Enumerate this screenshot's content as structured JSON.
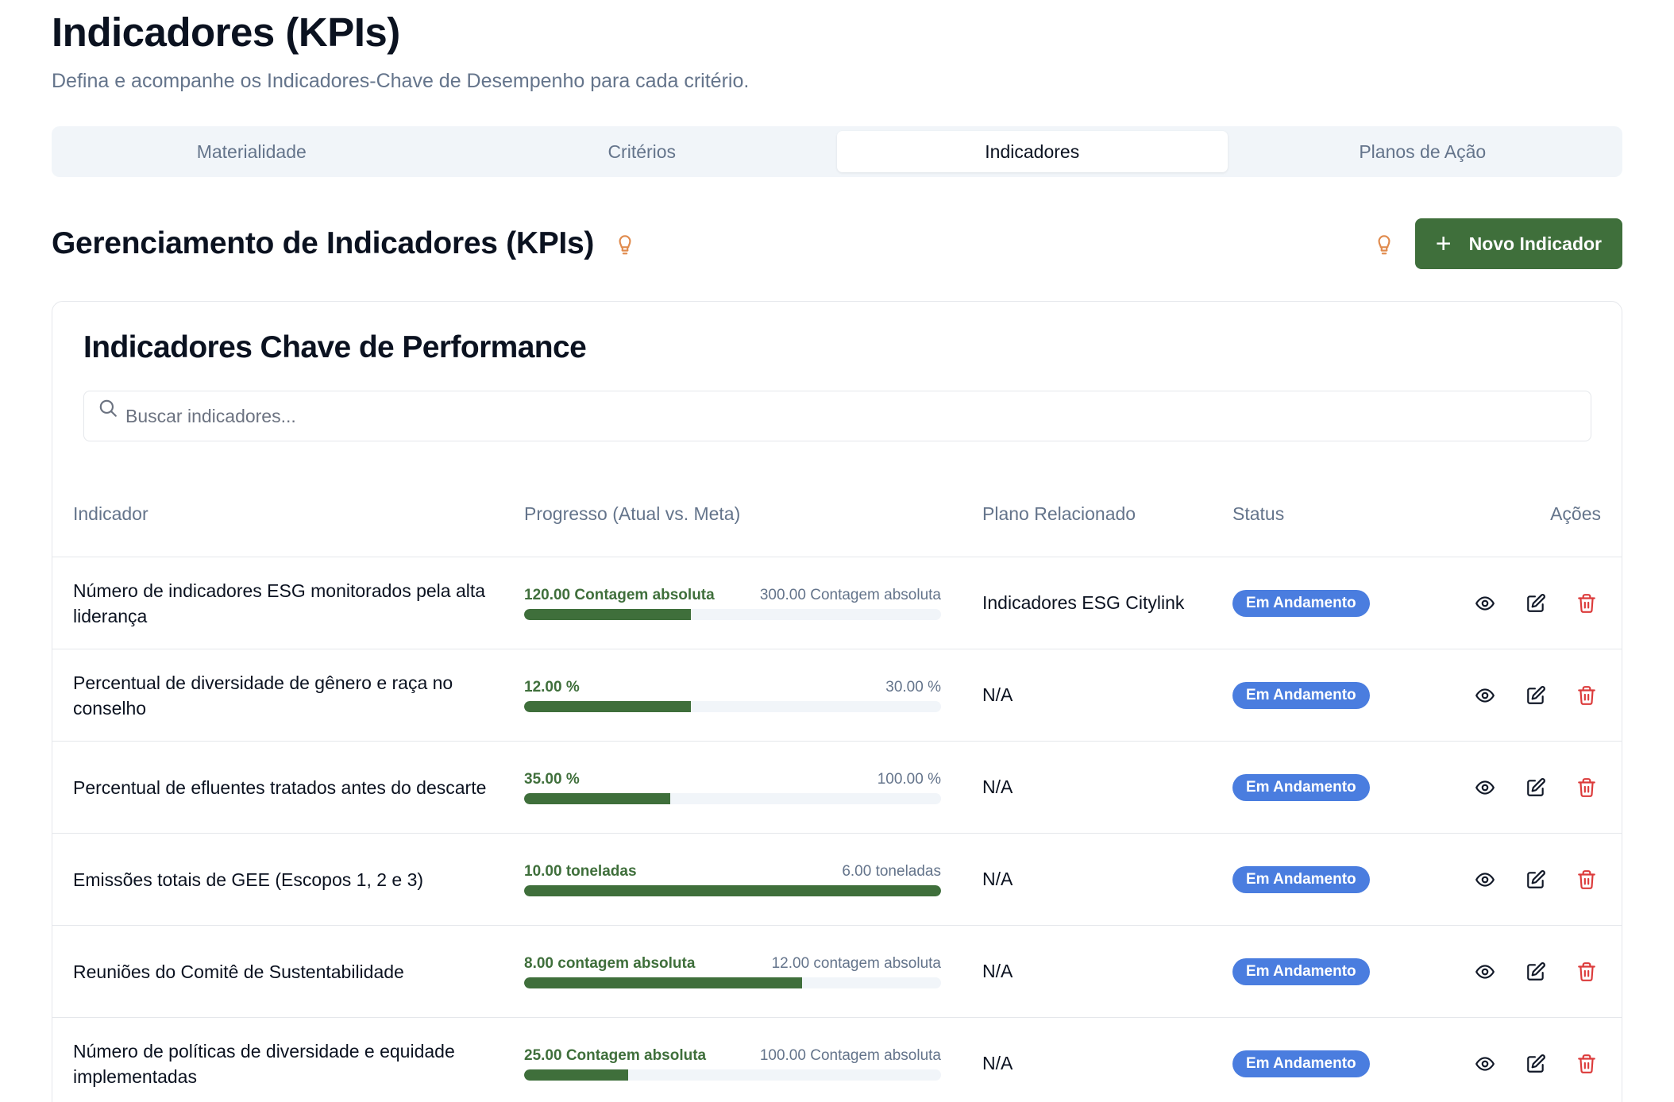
{
  "header": {
    "title": "Indicadores (KPIs)",
    "subtitle": "Defina e acompanhe os Indicadores-Chave de Desempenho para cada critério."
  },
  "tabs": [
    {
      "label": "Materialidade",
      "active": false
    },
    {
      "label": "Critérios",
      "active": false
    },
    {
      "label": "Indicadores",
      "active": true
    },
    {
      "label": "Planos de Ação",
      "active": false
    }
  ],
  "section": {
    "title": "Gerenciamento de Indicadores (KPIs)",
    "new_button_label": "Novo Indicador"
  },
  "card": {
    "title": "Indicadores Chave de Performance",
    "search_placeholder": "Buscar indicadores...",
    "search_value": ""
  },
  "table": {
    "headers": {
      "indicator": "Indicador",
      "progress": "Progresso (Atual vs. Meta)",
      "plan": "Plano Relacionado",
      "status": "Status",
      "actions": "Ações"
    },
    "rows": [
      {
        "name": "Número de indicadores ESG monitorados pela alta liderança",
        "current": "120.00 Contagem absoluta",
        "goal": "300.00 Contagem absoluta",
        "progress": 0.4,
        "plan": "Indicadores ESG Citylink",
        "status": "Em Andamento"
      },
      {
        "name": "Percentual de diversidade de gênero e raça no conselho",
        "current": "12.00 %",
        "goal": "30.00 %",
        "progress": 0.4,
        "plan": "N/A",
        "status": "Em Andamento"
      },
      {
        "name": "Percentual de efluentes tratados antes do descarte",
        "current": "35.00 %",
        "goal": "100.00 %",
        "progress": 0.35,
        "plan": "N/A",
        "status": "Em Andamento"
      },
      {
        "name": "Emissões totais de GEE (Escopos 1, 2 e 3)",
        "current": "10.00 toneladas",
        "goal": "6.00 toneladas",
        "progress": 1.0,
        "plan": "N/A",
        "status": "Em Andamento"
      },
      {
        "name": "Reuniões do Comitê de Sustentabilidade",
        "current": "8.00 contagem absoluta",
        "goal": "12.00 contagem absoluta",
        "progress": 0.6667,
        "plan": "N/A",
        "status": "Em Andamento"
      },
      {
        "name": "Número de políticas de diversidade e equidade implementadas",
        "current": "25.00 Contagem absoluta",
        "goal": "100.00 Contagem absoluta",
        "progress": 0.25,
        "plan": "N/A",
        "status": "Em Andamento"
      }
    ]
  },
  "colors": {
    "primary": "#3f6f3b",
    "badge": "#4a7ddf",
    "danger": "#dc3b3b",
    "bulb": "#e08a4c"
  },
  "icons": {
    "bulb": "lightbulb-icon",
    "plus": "plus-icon",
    "search": "search-icon",
    "view": "eye-icon",
    "edit": "edit-icon",
    "delete": "trash-icon"
  }
}
